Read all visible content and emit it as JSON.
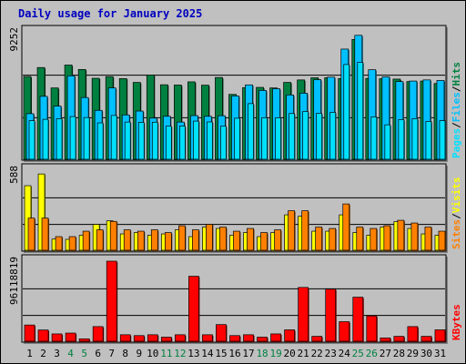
{
  "chart_data": {
    "type": "bar",
    "title": "Daily usage for January 2025",
    "days": [
      "1",
      "2",
      "3",
      "4",
      "5",
      "6",
      "7",
      "8",
      "9",
      "10",
      "11",
      "12",
      "13",
      "14",
      "15",
      "16",
      "17",
      "18",
      "19",
      "20",
      "21",
      "22",
      "23",
      "24",
      "25",
      "26",
      "27",
      "28",
      "29",
      "30",
      "31"
    ],
    "weekend_days": [
      "4",
      "5",
      "11",
      "12",
      "18",
      "19",
      "25",
      "26"
    ],
    "colors": {
      "hits": "#008040",
      "files": "#00c0ff",
      "pages": "#00e0ff",
      "visits": "#ffff00",
      "sites": "#ff8000",
      "kbytes": "#ff0000",
      "title": "#0000c0",
      "weekend": "#008040",
      "weekday": "#000000"
    },
    "panels": [
      {
        "name": "hits-files-pages",
        "max_label": "9252",
        "max": 9252,
        "legend": [
          "Pages",
          "/",
          "Files",
          "/",
          "Hits"
        ],
        "series": [
          {
            "name": "Hits",
            "values": [
              6010,
              6660,
              5180,
              6840,
              6520,
              5880,
              6000,
              5860,
              5580,
              6120,
              5410,
              5390,
              5620,
              5380,
              5940,
              4710,
              5200,
              5220,
              5180,
              5580,
              5760,
              5920,
              5920,
              5860,
              8700,
              5870,
              5850,
              5820,
              5640,
              5680,
              5500
            ]
          },
          {
            "name": "Files",
            "values": [
              3310,
              4570,
              3860,
              6060,
              4480,
              3550,
              5180,
              3220,
              3500,
              2990,
              3120,
              2700,
              3170,
              3120,
              3160,
              4600,
              5400,
              5000,
              5120,
              4670,
              4800,
              5780,
              5960,
              8000,
              9000,
              6500,
              5980,
              5640,
              5680,
              5760,
              5720
            ]
          },
          {
            "name": "Pages",
            "values": [
              2800,
              2900,
              2950,
              3100,
              3030,
              2640,
              3180,
              2700,
              2680,
              2690,
              2400,
              2410,
              2770,
              2710,
              2400,
              2980,
              4040,
              3020,
              3010,
              3320,
              3470,
              3340,
              3410,
              6880,
              7040,
              3080,
              2500,
              2880,
              2950,
              2750,
              2800
            ]
          }
        ]
      },
      {
        "name": "visits-sites",
        "max_label": "588",
        "max": 588,
        "legend": [
          "Sites",
          "/",
          "Visits"
        ],
        "series": [
          {
            "name": "Visits",
            "values": [
              474,
              560,
              82,
              80,
              110,
              190,
              216,
              120,
              130,
              110,
              120,
              150,
              100,
              170,
              160,
              110,
              130,
              100,
              130,
              260,
              250,
              140,
              140,
              260,
              130,
              110,
              170,
              210,
              160,
              120,
              110
            ]
          },
          {
            "name": "Sites",
            "values": [
              236,
              236,
              100,
              100,
              140,
              150,
              212,
              150,
              140,
              150,
              130,
              180,
              150,
              190,
              170,
              140,
              160,
              130,
              150,
              290,
              290,
              170,
              160,
              340,
              170,
              160,
              180,
              220,
              200,
              170,
              140
            ]
          }
        ]
      },
      {
        "name": "kbytes",
        "max_label": "96118819",
        "max": 96118819,
        "legend": [
          "KBytes"
        ],
        "series": [
          {
            "name": "KBytes",
            "values": [
              19500000,
              13500000,
              8800000,
              9800000,
              2900000,
              17600000,
              96118819,
              7800000,
              6800000,
              7800000,
              4900000,
              7800000,
              78000000,
              7800000,
              20000000,
              6800000,
              7800000,
              4900000,
              8800000,
              13700000,
              64600000,
              5900000,
              62600000,
              23500000,
              52900000,
              30400000,
              4000000,
              5900000,
              17600000,
              5900000,
              13700000
            ]
          }
        ]
      }
    ]
  }
}
